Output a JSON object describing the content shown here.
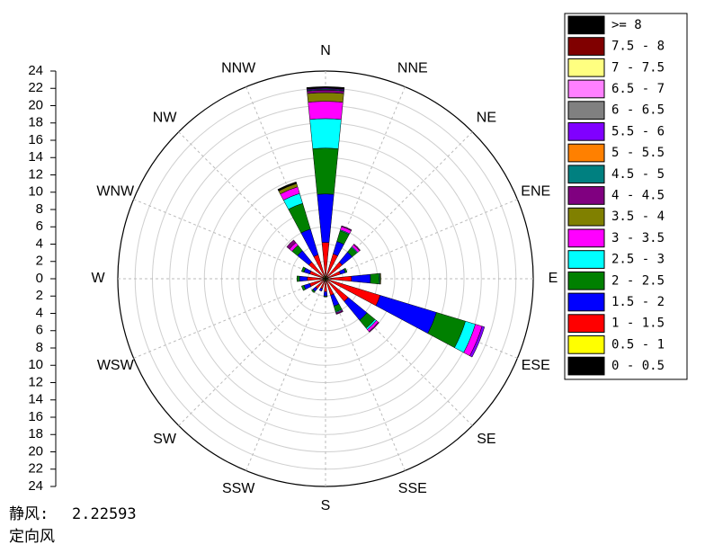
{
  "chart_data": {
    "type": "wind-rose",
    "categories": [
      "N",
      "NNE",
      "NE",
      "ENE",
      "E",
      "ESE",
      "SE",
      "SSE",
      "S",
      "SSW",
      "SW",
      "WSW",
      "W",
      "WNW",
      "NW",
      "NNW"
    ],
    "rlim": [
      0,
      24
    ],
    "rticks": [
      0,
      2,
      4,
      6,
      8,
      10,
      12,
      14,
      16,
      18,
      20,
      22,
      24
    ],
    "grid": true,
    "series": [
      {
        "name": "0 - 0.5",
        "color": "#000000",
        "values": [
          0.1,
          0.1,
          0.1,
          0.1,
          0.1,
          0.1,
          0.1,
          0.1,
          0.1,
          0.1,
          0.1,
          0.1,
          0.1,
          0.1,
          0.1,
          0.1
        ]
      },
      {
        "name": "0.5 - 1",
        "color": "#ffff00",
        "values": [
          0.3,
          0.2,
          0.2,
          0.2,
          0.2,
          0.3,
          0.2,
          0.2,
          0.2,
          0.2,
          0.2,
          0.2,
          0.2,
          0.2,
          0.2,
          0.3
        ]
      },
      {
        "name": "1 - 1.5",
        "color": "#ff0000",
        "values": [
          3.8,
          2.7,
          2.2,
          1.5,
          2.7,
          6.2,
          3.1,
          1.7,
          1.2,
          0.9,
          1.2,
          1.6,
          1.8,
          1.6,
          2.2,
          2.5
        ]
      },
      {
        "name": "1.5 - 2",
        "color": "#0000ff",
        "values": [
          5.6,
          1.5,
          1.5,
          0.6,
          2.2,
          6.8,
          2.8,
          1.3,
          0.5,
          0.3,
          0.4,
          0.7,
          0.9,
          0.7,
          1.7,
          3.1
        ]
      },
      {
        "name": "2 - 2.5",
        "color": "#008000",
        "values": [
          5.3,
          1.3,
          0.7,
          0.2,
          1.0,
          3.5,
          1.2,
          0.7,
          0.1,
          0,
          0.2,
          0.3,
          0.3,
          0.3,
          0.8,
          3.1
        ]
      },
      {
        "name": "2.5 - 3",
        "color": "#00ffff",
        "values": [
          3.4,
          0.1,
          0.1,
          0,
          0.1,
          1.2,
          0.2,
          0.1,
          0,
          0,
          0,
          0,
          0,
          0,
          0,
          1.2
        ]
      },
      {
        "name": "3 - 3.5",
        "color": "#ff00ff",
        "values": [
          2.0,
          0.4,
          0.3,
          0,
          0,
          0.8,
          0.3,
          0.1,
          0,
          0,
          0,
          0,
          0,
          0,
          0.4,
          0.8
        ]
      },
      {
        "name": "3.5 - 4",
        "color": "#808000",
        "values": [
          1.0,
          0,
          0,
          0,
          0.1,
          0,
          0,
          0,
          0,
          0,
          0,
          0,
          0,
          0,
          0,
          0.4
        ]
      },
      {
        "name": "4 - 4.5",
        "color": "#800080",
        "values": [
          0.3,
          0.1,
          0.1,
          0,
          0,
          0,
          0.1,
          0.1,
          0,
          0,
          0,
          0,
          0,
          0,
          0.4,
          0
        ]
      },
      {
        "name": "4.5 - 5",
        "color": "#008080",
        "values": [
          0.1,
          0,
          0,
          0,
          0,
          0,
          0,
          0,
          0,
          0,
          0,
          0,
          0,
          0,
          0,
          0
        ]
      },
      {
        "name": "5 - 5.5",
        "color": "#ff8000",
        "values": [
          0,
          0,
          0,
          0,
          0,
          0,
          0,
          0,
          0,
          0,
          0,
          0,
          0,
          0,
          0,
          0
        ]
      },
      {
        "name": "5.5 - 6",
        "color": "#8000ff",
        "values": [
          0.1,
          0,
          0,
          0,
          0,
          0.3,
          0,
          0,
          0,
          0,
          0,
          0,
          0,
          0,
          0,
          0
        ]
      },
      {
        "name": "6 - 6.5",
        "color": "#808080",
        "values": [
          0,
          0,
          0,
          0,
          0,
          0,
          0,
          0,
          0,
          0,
          0,
          0,
          0,
          0,
          0,
          0
        ]
      },
      {
        "name": "6.5 - 7",
        "color": "#ff80ff",
        "values": [
          0,
          0,
          0,
          0,
          0,
          0,
          0,
          0,
          0,
          0,
          0,
          0,
          0,
          0,
          0,
          0
        ]
      },
      {
        "name": "7 - 7.5",
        "color": "#ffff80",
        "values": [
          0,
          0,
          0,
          0,
          0,
          0,
          0,
          0,
          0,
          0,
          0,
          0,
          0,
          0,
          0,
          0
        ]
      },
      {
        "name": "7.5 - 8",
        "color": "#800000",
        "values": [
          0,
          0,
          0,
          0,
          0,
          0,
          0,
          0,
          0,
          0,
          0,
          0,
          0,
          0,
          0,
          0
        ]
      },
      {
        "name": ">= 8",
        "color": "#000000",
        "values": [
          0.2,
          0,
          0,
          0,
          0,
          0,
          0,
          0,
          0,
          0,
          0,
          0,
          0,
          0,
          0,
          0.2
        ]
      }
    ],
    "calm_label": "静风:",
    "calm_value": 2.22593,
    "mode_label": "定向风"
  }
}
